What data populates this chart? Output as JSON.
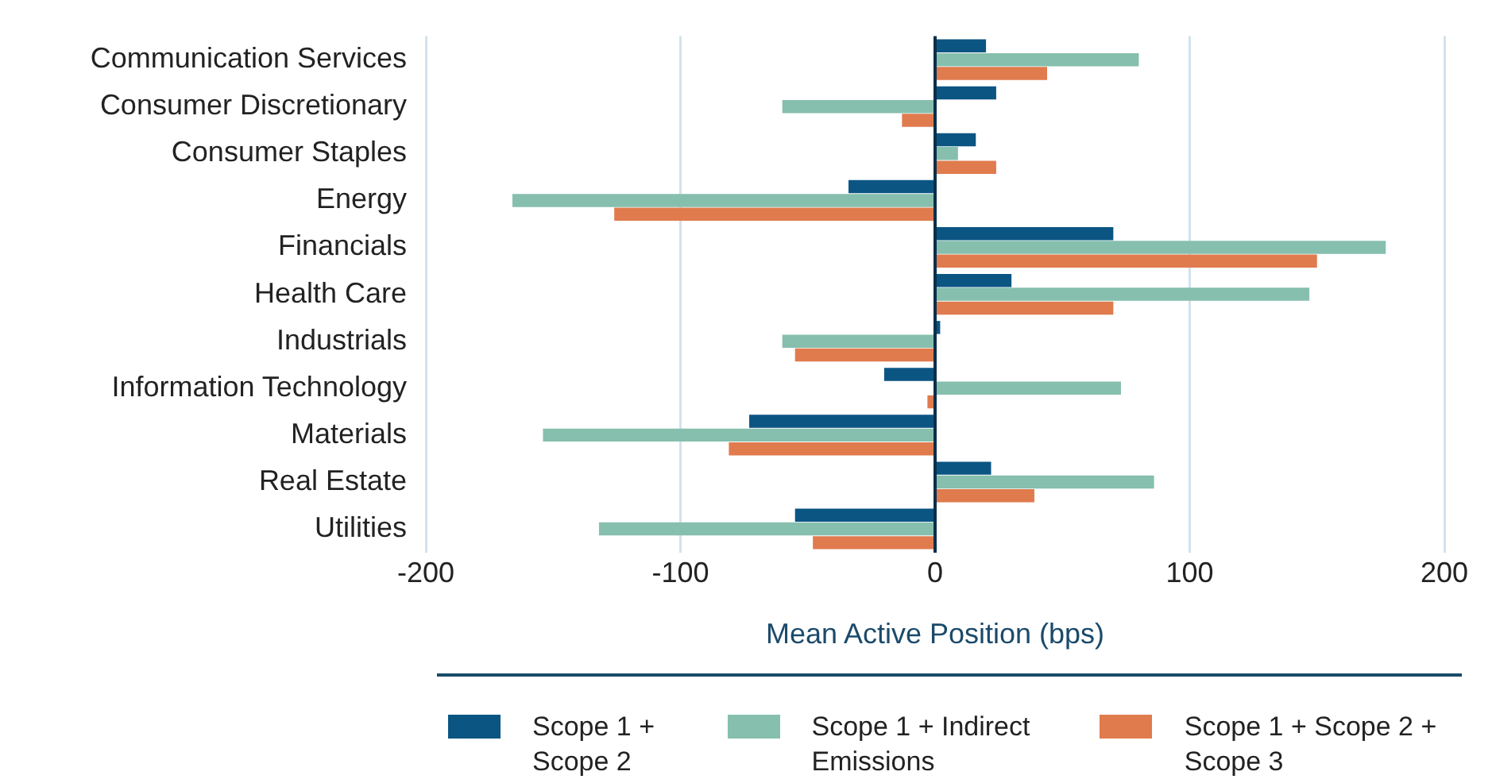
{
  "chart_data": {
    "type": "bar",
    "orientation": "horizontal",
    "xlabel": "Mean Active Position (bps)",
    "categories": [
      "Communication Services",
      "Consumer Discretionary",
      "Consumer Staples",
      "Energy",
      "Financials",
      "Health Care",
      "Industrials",
      "Information Technology",
      "Materials",
      "Real Estate",
      "Utilities"
    ],
    "series": [
      {
        "name": "Scope 1 + Scope 2",
        "color": "#0b5583",
        "values": [
          20,
          24,
          16,
          -34,
          70,
          30,
          2,
          -20,
          -73,
          22,
          -55
        ]
      },
      {
        "name": "Scope 1 + Indirect Emissions",
        "color": "#86bfae",
        "values": [
          80,
          -60,
          9,
          -166,
          177,
          147,
          -60,
          73,
          -154,
          86,
          -132
        ]
      },
      {
        "name": "Scope 1 + Scope 2 + Scope 3",
        "color": "#e07b4e",
        "values": [
          44,
          -13,
          24,
          -126,
          150,
          70,
          -55,
          -3,
          -81,
          39,
          -48
        ]
      }
    ],
    "xlim": [
      -200,
      200
    ],
    "xticks": [
      -200,
      -100,
      0,
      100,
      200
    ],
    "grid": "x",
    "legend": "bottom"
  }
}
